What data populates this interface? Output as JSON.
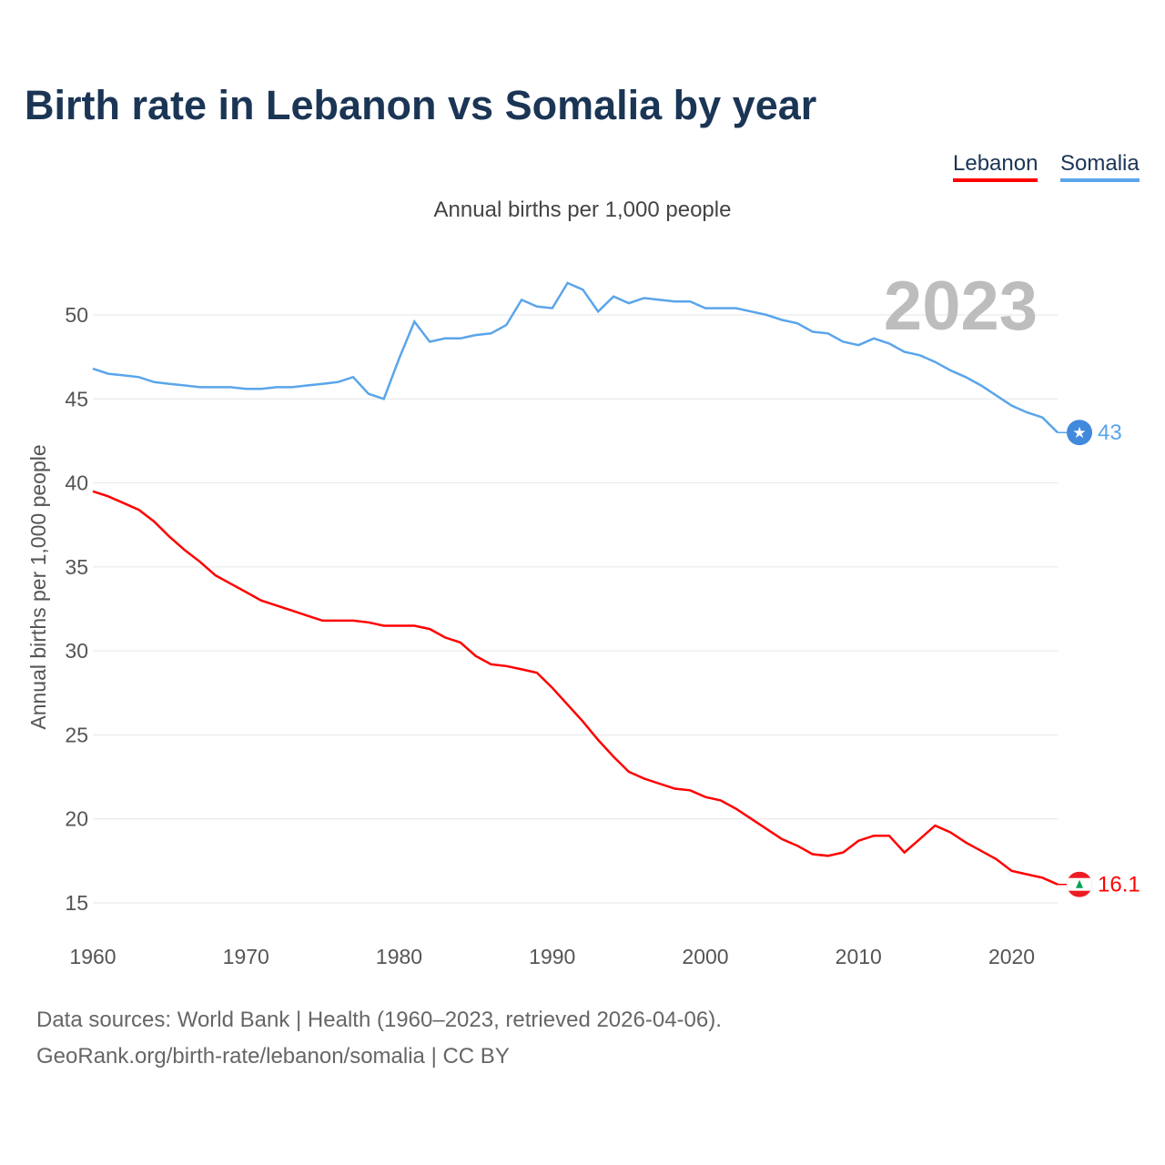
{
  "title": "Birth rate in Lebanon vs Somalia by year",
  "legend": [
    {
      "label": "Lebanon",
      "color": "#ff0000"
    },
    {
      "label": "Somalia",
      "color": "#5aa5ea"
    }
  ],
  "footer": {
    "line1": "Data sources: World Bank | Health (1960–2023, retrieved 2026-04-06).",
    "line2": "GeoRank.org/birth-rate/lebanon/somalia | CC BY"
  },
  "chart_data": {
    "type": "line",
    "title": "Birth rate in Lebanon vs Somalia by year",
    "subtitle": "Annual births per 1,000 people",
    "ylabel": "Annual births per 1,000 people",
    "xlabel": "",
    "year_watermark": "2023",
    "xlim": [
      1960,
      2023
    ],
    "ylim": [
      15,
      52
    ],
    "yticks": [
      15,
      20,
      25,
      30,
      35,
      40,
      45,
      50
    ],
    "xticks": [
      1960,
      1970,
      1980,
      1990,
      2000,
      2010,
      2020
    ],
    "grid": true,
    "legend_position": "top-right",
    "x_start": 1960,
    "series": [
      {
        "name": "Lebanon",
        "color": "#ff0000",
        "end_label": "16.1",
        "marker_icon": "lebanon-flag-icon",
        "values": [
          39.5,
          39.2,
          38.8,
          38.4,
          37.7,
          36.8,
          36.0,
          35.3,
          34.5,
          34.0,
          33.5,
          33.0,
          32.7,
          32.4,
          32.1,
          31.8,
          31.8,
          31.8,
          31.7,
          31.5,
          31.5,
          31.5,
          31.3,
          30.8,
          30.5,
          29.7,
          29.2,
          29.1,
          28.9,
          28.7,
          27.8,
          26.8,
          25.8,
          24.7,
          23.7,
          22.8,
          22.4,
          22.1,
          21.8,
          21.7,
          21.3,
          21.1,
          20.6,
          20.0,
          19.4,
          18.8,
          18.4,
          17.9,
          17.8,
          18.0,
          18.7,
          19.0,
          19.0,
          18.0,
          18.8,
          19.6,
          19.2,
          18.6,
          18.1,
          17.6,
          16.9,
          16.7,
          16.5,
          16.1
        ]
      },
      {
        "name": "Somalia",
        "color": "#5aa5ea",
        "end_label": "43",
        "marker_icon": "somalia-flag-icon",
        "values": [
          46.8,
          46.5,
          46.4,
          46.3,
          46.0,
          45.9,
          45.8,
          45.7,
          45.7,
          45.7,
          45.6,
          45.6,
          45.7,
          45.7,
          45.8,
          45.9,
          46.0,
          46.3,
          45.3,
          45.0,
          47.4,
          49.6,
          48.4,
          48.6,
          48.6,
          48.8,
          48.9,
          49.4,
          50.9,
          50.5,
          50.4,
          51.9,
          51.5,
          50.2,
          51.1,
          50.7,
          51.0,
          50.9,
          50.8,
          50.8,
          50.4,
          50.4,
          50.4,
          50.2,
          50.0,
          49.7,
          49.5,
          49.0,
          48.9,
          48.4,
          48.2,
          48.6,
          48.3,
          47.8,
          47.6,
          47.2,
          46.7,
          46.3,
          45.8,
          45.2,
          44.6,
          44.2,
          43.9,
          43.0
        ]
      }
    ]
  }
}
